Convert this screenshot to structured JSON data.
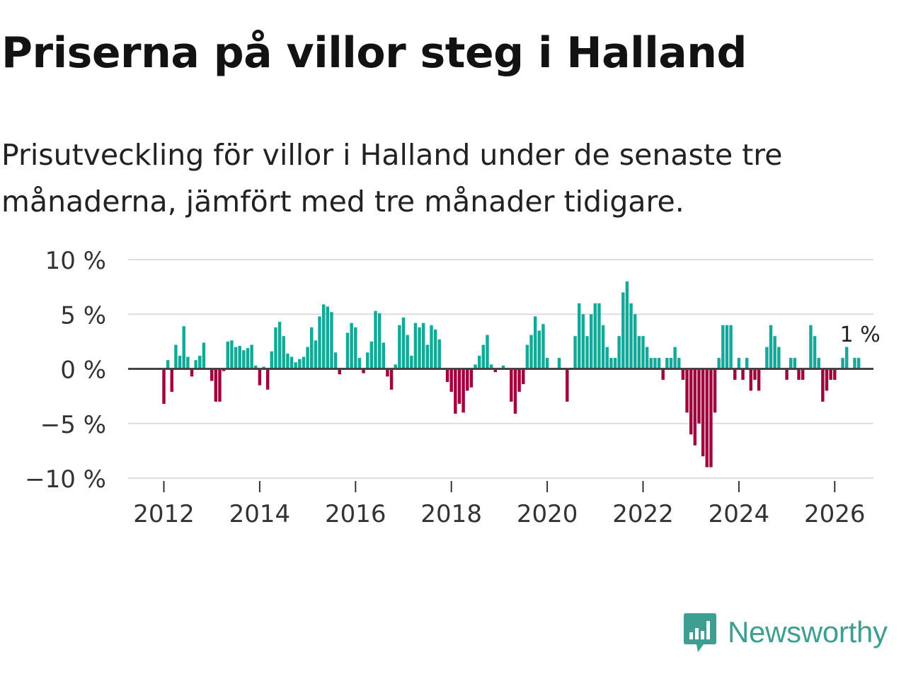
{
  "title": "Priserna på villor steg i Halland",
  "subtitle": "Prisutveckling för villor i Halland under de senaste tre månaderna, jämfört med tre månader tidigare.",
  "brand": {
    "name": "Newsworthy",
    "color": "#3f9e92",
    "icon": "newsworthy-logo-icon"
  },
  "colors": {
    "positive": "#14a89b",
    "negative": "#a0003c",
    "grid": "#dddddd",
    "zero": "#444444"
  },
  "chart_data": {
    "type": "bar",
    "title": "Priserna på villor steg i Halland",
    "ylabel": "",
    "xlabel": "",
    "ylim": [
      -10,
      10
    ],
    "y_ticks": [
      10,
      5,
      0,
      -5,
      -10
    ],
    "y_tick_labels": [
      "10 %",
      "5 %",
      "0 %",
      "−5 %",
      "−10 %"
    ],
    "x_ticks": [
      2012,
      2014,
      2016,
      2018,
      2020,
      2022,
      2024,
      2026
    ],
    "x_tick_labels": [
      "2012",
      "2014",
      "2016",
      "2018",
      "2020",
      "2022",
      "2024",
      "2026"
    ],
    "start": "2012-01",
    "frequency": "monthly",
    "last_label": "1 %",
    "values": [
      -3.2,
      0.8,
      -2.1,
      2.2,
      1.2,
      3.9,
      1.1,
      -0.7,
      0.8,
      1.2,
      2.4,
      0,
      -1.1,
      -3.0,
      -3.0,
      -0.2,
      2.5,
      2.6,
      2.0,
      2.1,
      1.7,
      1.9,
      2.2,
      0.3,
      -1.5,
      0.2,
      -1.9,
      1.6,
      3.8,
      4.3,
      3.0,
      1.4,
      1.1,
      0.6,
      0.9,
      1.1,
      2.0,
      3.8,
      2.6,
      4.8,
      5.9,
      5.7,
      5.2,
      1.5,
      -0.5,
      0,
      3.3,
      4.2,
      3.8,
      1.0,
      -0.4,
      1.5,
      2.5,
      5.3,
      5.1,
      2.4,
      -0.7,
      -1.9,
      0.4,
      4.0,
      4.7,
      3.1,
      1.2,
      4.2,
      3.8,
      4.2,
      2.2,
      4.0,
      3.6,
      2.7,
      0,
      -1.2,
      -2.1,
      -4.1,
      -3.2,
      -4.0,
      -2.0,
      -1.7,
      0.4,
      1.2,
      2.2,
      3.1,
      0.4,
      -0.3,
      0.1,
      0.3,
      0,
      -3.0,
      -4.1,
      -2.1,
      -1.4,
      2.2,
      3.1,
      4.8,
      3.5,
      4.1,
      1.0,
      0,
      0,
      1.0,
      0,
      -3.0,
      0,
      3.0,
      6.0,
      5.0,
      3.0,
      5.0,
      6.0,
      6.0,
      4.0,
      2.0,
      1.0,
      1.0,
      3.0,
      7.0,
      8.0,
      6.0,
      5.0,
      3.0,
      3.0,
      2.0,
      1.0,
      1.0,
      1.0,
      -1.0,
      1.0,
      1.0,
      2.0,
      1.0,
      -1.0,
      -4.0,
      -6.0,
      -7.0,
      -5.0,
      -8.0,
      -9.0,
      -9.0,
      -4.0,
      1.0,
      4.0,
      4.0,
      4.0,
      -1.0,
      1.0,
      -1.0,
      1.0,
      -2.0,
      -1.0,
      -2.0,
      0,
      2.0,
      4.0,
      3.0,
      2.0,
      0,
      -1.0,
      1.0,
      1.0,
      -1.0,
      -1.0,
      0,
      4.0,
      3.0,
      1.0,
      -3.0,
      -2.0,
      -1.0,
      -1.0,
      0,
      1.0,
      2.0,
      0,
      1.0,
      1.0
    ]
  }
}
